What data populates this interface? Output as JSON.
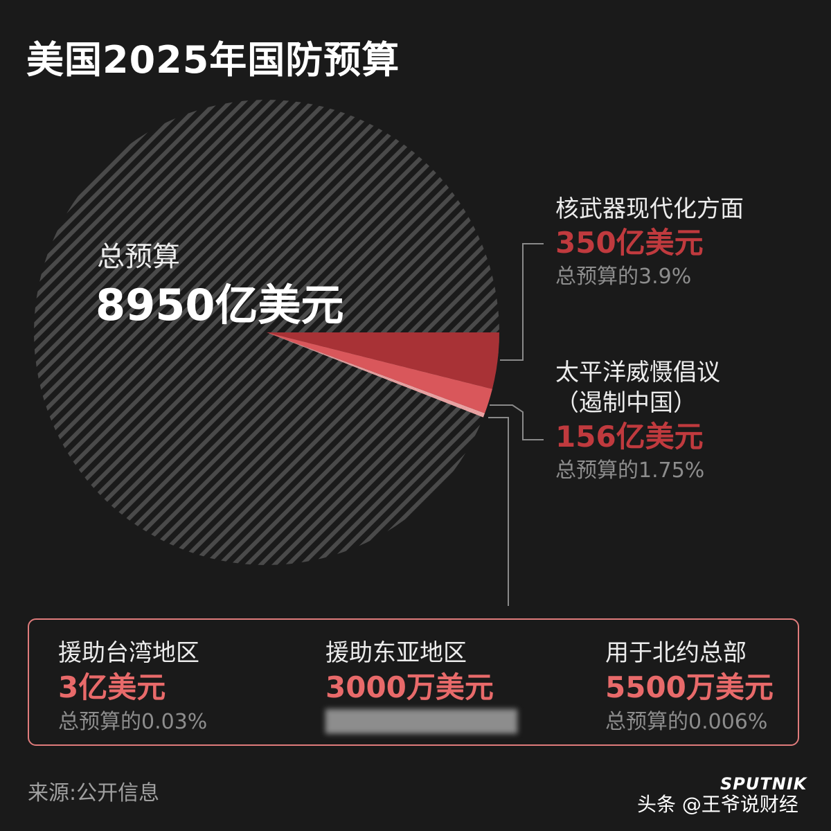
{
  "title": "美国2025年国防预算",
  "total": {
    "label": "总预算",
    "value": "8950亿美元"
  },
  "side_items": [
    {
      "label": "核武器现代化方面",
      "amount": "350亿美元",
      "percent": "总预算的3.9%"
    },
    {
      "label": "太平洋威慑倡议",
      "label2": "（遏制中国）",
      "amount": "156亿美元",
      "percent": "总预算的1.75%"
    }
  ],
  "box_items": [
    {
      "label": "援助台湾地区",
      "amount": "3亿美元",
      "percent": "总预算的0.03%"
    },
    {
      "label": "援助东亚地区",
      "amount": "3000万美元",
      "percent": ""
    },
    {
      "label": "用于北约总部",
      "amount": "5500万美元",
      "percent": "总预算的0.006%"
    }
  ],
  "source": "来源:公开信息",
  "brand": "SPUTNIK",
  "watermark": "头条 @王爷说财经",
  "colors": {
    "background": "#1a1a1a",
    "nuclear": "#a83236",
    "pacific": "#d9575b",
    "small": "#f0a8a8",
    "amount_dark": "#c03a3e",
    "amount_light": "#e86a6a",
    "leader_line": "#8a8a8a"
  },
  "chart_data": {
    "type": "pie",
    "total": 8950,
    "unit": "亿美元",
    "slices": [
      {
        "label": "核武器现代化方面",
        "value": 350,
        "percent": 3.9
      },
      {
        "label": "太平洋威慑倡议（遏制中国）",
        "value": 156,
        "percent": 1.75
      },
      {
        "label": "援助台湾地区",
        "value": 3,
        "percent": 0.03
      },
      {
        "label": "援助东亚地区",
        "value": 0.3
      },
      {
        "label": "用于北约总部",
        "value": 0.55,
        "percent": 0.006
      }
    ]
  }
}
